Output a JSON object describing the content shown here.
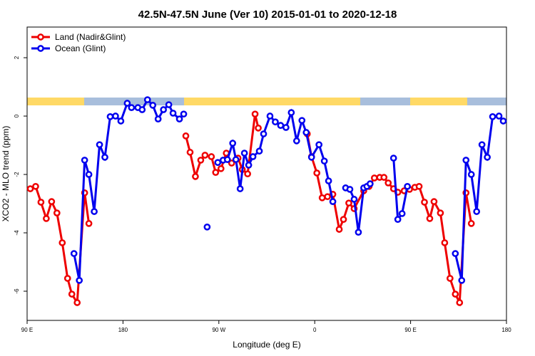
{
  "chart_data": {
    "type": "line",
    "title": "42.5N-47.5N June (Ver 10)   2015-01-01 to 2020-12-18",
    "x_label": "Longitude (deg E)",
    "y_label": "XCO2 - MLO trend (ppm)",
    "xlim": [
      90,
      540
    ],
    "ylim": [
      -7,
      3.05
    ],
    "xticks": [
      {
        "value": 90,
        "label": "90 E"
      },
      180,
      {
        "value": 270,
        "label": "90 W"
      },
      {
        "value": 360,
        "label": "0"
      },
      {
        "value": 450,
        "label": "90 E"
      },
      {
        "value": 540,
        "label": "180"
      }
    ],
    "yticks": [
      -6,
      -4,
      -2,
      0,
      2
    ],
    "legend": "top-left",
    "series": [
      {
        "name": "Land (Nadir&Glint)",
        "color": "#ee0000",
        "x": [
          93,
          98,
          103,
          108,
          113,
          118,
          123,
          128,
          132,
          137,
          144,
          148,
          null,
          239,
          243,
          248,
          253,
          257,
          263,
          267,
          272,
          277,
          282,
          288,
          292,
          297,
          304,
          307,
          null,
          353,
          357,
          362,
          367,
          372,
          377,
          383,
          387,
          392,
          397,
          406,
          411,
          416,
          421,
          425,
          429,
          434,
          438,
          444,
          449,
          454,
          458,
          463,
          468,
          472,
          478,
          482,
          487,
          492,
          496,
          502,
          507
        ],
        "values": [
          -2.49,
          -2.41,
          -2.95,
          -3.51,
          -2.93,
          -3.32,
          -4.34,
          -5.56,
          -6.1,
          -6.39,
          -2.63,
          -3.68,
          null,
          -0.68,
          -1.24,
          -2.07,
          -1.51,
          -1.34,
          -1.39,
          -1.93,
          -1.8,
          -1.27,
          -1.61,
          -1.44,
          -1.83,
          -1.98,
          0.07,
          -0.41,
          null,
          -0.61,
          -1.39,
          -1.95,
          -2.8,
          -2.76,
          -2.68,
          -3.88,
          -3.54,
          -2.98,
          -3.17,
          -2.56,
          -2.41,
          -2.12,
          -2.1,
          -2.1,
          -2.29,
          -2.49,
          -2.61,
          -2.56,
          -2.51,
          -2.44,
          -2.41,
          -2.95,
          -3.51,
          -2.93,
          -3.32,
          -4.34,
          -5.56,
          -6.1,
          -6.39,
          -2.63,
          -3.68
        ]
      },
      {
        "name": "Ocean (Glint)",
        "color": "#0000ee",
        "x": [
          134,
          139,
          144,
          148,
          153,
          158,
          163,
          168,
          173,
          178,
          184,
          188,
          194,
          198,
          203,
          208,
          213,
          218,
          223,
          227,
          233,
          237,
          null,
          259,
          null,
          269,
          274,
          278,
          283,
          286,
          290,
          294,
          298,
          302,
          308,
          312,
          318,
          323,
          328,
          333,
          338,
          343,
          348,
          352,
          357,
          364,
          369,
          373,
          377,
          null,
          389,
          393,
          397,
          401,
          406,
          409,
          412,
          null,
          434,
          438,
          442,
          447,
          null,
          492,
          498,
          502,
          507,
          512,
          517,
          522,
          527,
          533,
          537
        ],
        "values": [
          -4.71,
          -5.63,
          -1.51,
          -2.0,
          -3.27,
          -0.98,
          -1.41,
          -0.02,
          0,
          -0.17,
          0.44,
          0.29,
          0.29,
          0.22,
          0.56,
          0.37,
          -0.1,
          0.22,
          0.39,
          0.1,
          -0.1,
          0.07,
          null,
          -3.8,
          null,
          -1.59,
          -1.51,
          -1.49,
          -0.93,
          -1.49,
          -2.49,
          -1.27,
          -1.68,
          -1.39,
          -1.2,
          -0.61,
          0,
          -0.2,
          -0.32,
          -0.39,
          0.12,
          -0.85,
          -0.15,
          -0.56,
          -1.41,
          -0.98,
          -1.54,
          -2.22,
          -2.93,
          null,
          -2.46,
          -2.51,
          -2.85,
          -3.98,
          -2.46,
          -2.41,
          -2.32,
          null,
          -1.44,
          -3.54,
          -3.34,
          -2.41,
          null,
          -4.71,
          -5.63,
          -1.51,
          -2.0,
          -3.27,
          -0.98,
          -1.41,
          -0.02,
          0,
          -0.17
        ]
      }
    ]
  }
}
